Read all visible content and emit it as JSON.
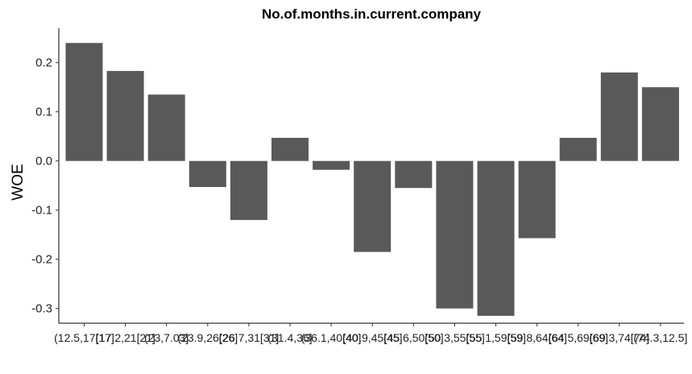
{
  "chart_data": {
    "type": "bar",
    "title": "No.of.months.in.current.company",
    "xlabel": "",
    "ylabel": "WOE",
    "ylim": [
      -0.33,
      0.27
    ],
    "yticks": [
      0.2,
      0.1,
      0.0,
      -0.1,
      -0.2,
      -0.3
    ],
    "ytick_labels": [
      "0.2",
      "0.1",
      "0.0",
      "-0.1",
      "-0.2",
      "-0.3"
    ],
    "categories": [
      "(12.5,17]",
      "(17,21]",
      "(21,23]",
      "(23,26]",
      "(26,31]",
      "(31,36]",
      "(36,40]",
      "(40,45]",
      "(45,50]",
      "(50,55]",
      "(55,59]",
      "(59,64]",
      "(64,69]",
      "(69,74]",
      "(74,112.5]"
    ],
    "tick_labels": [
      "(12.5,17[17]",
      "(17.2,21[21]",
      "(23,7.03]",
      "(23.9,26[26]",
      "(26.7,31[31]",
      "(31.4,36]",
      "(36.1,40[40]",
      "(40.9,45[45]",
      "(45.6,50[50]",
      "(50.3,55[55]",
      "(55.1,59[59]",
      "(59.8,64[64]",
      "(64.5,69[69]",
      "(69.3,74[74]",
      "(74.3,12.5]"
    ],
    "values": [
      0.24,
      0.183,
      0.135,
      -0.053,
      -0.12,
      0.047,
      -0.018,
      -0.185,
      -0.055,
      -0.3,
      -0.315,
      -0.157,
      0.047,
      0.18,
      0.15
    ],
    "bar_color": "#595959",
    "grid": false,
    "legend": "none"
  }
}
